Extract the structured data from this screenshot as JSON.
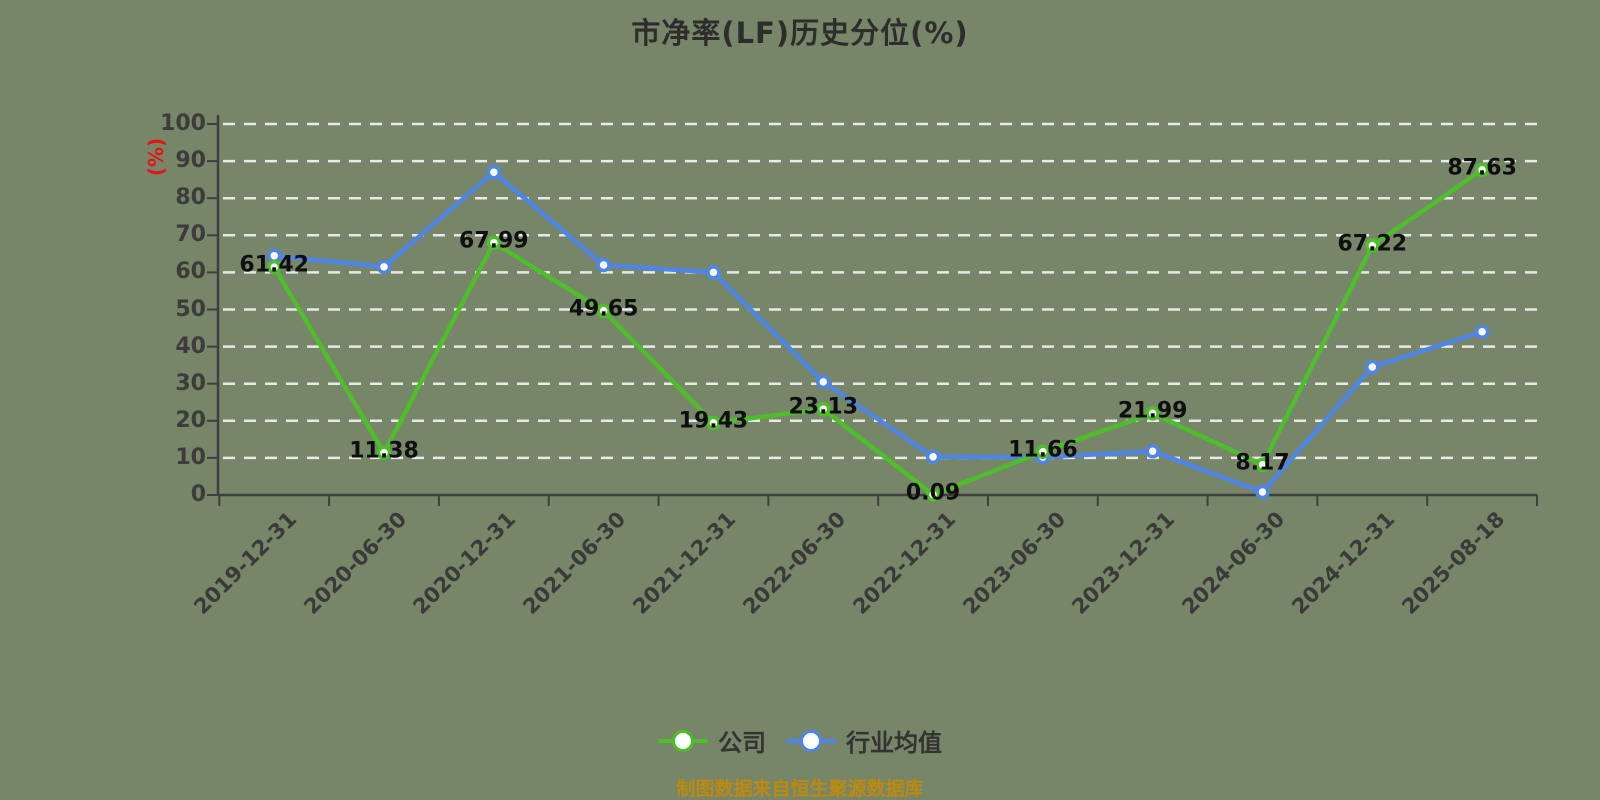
{
  "title": "市净率(LF)历史分位(%)",
  "y_axis": {
    "unit": "(%)",
    "unit_color": "#e01616"
  },
  "source_note": {
    "text": "制图数据来自恒生聚源数据库",
    "color": "#bd8a10"
  },
  "chart_data": {
    "type": "line",
    "title": "市净率(LF)历史分位(%)",
    "xlabel": "",
    "ylabel": "(%)",
    "ylim": [
      0,
      100
    ],
    "yticks": [
      0,
      10,
      20,
      30,
      40,
      50,
      60,
      70,
      80,
      90,
      100
    ],
    "grid": "dashed-horizontal",
    "legend_position": "bottom",
    "categories": [
      "2019-12-31",
      "2020-06-30",
      "2020-12-31",
      "2021-06-30",
      "2021-12-31",
      "2022-06-30",
      "2022-12-31",
      "2023-06-30",
      "2023-12-31",
      "2024-06-30",
      "2024-12-31",
      "2025-08-18"
    ],
    "series": [
      {
        "name": "公司",
        "color": "#4fbe2b",
        "values": [
          61.42,
          11.38,
          67.99,
          49.65,
          19.43,
          23.13,
          0.09,
          11.66,
          21.99,
          8.17,
          67.22,
          87.63
        ],
        "labels": [
          "61.42",
          "11.38",
          "67.99",
          "49.65",
          "19.43",
          "23.13",
          "0.09",
          "11.66",
          "21.99",
          "8.17",
          "67.22",
          "87.63"
        ]
      },
      {
        "name": "行业均值",
        "color": "#4e86e8",
        "values": [
          64.5,
          61.5,
          87,
          62,
          60,
          30.5,
          10.3,
          10.2,
          11.8,
          0.8,
          34.5,
          44
        ]
      }
    ]
  }
}
